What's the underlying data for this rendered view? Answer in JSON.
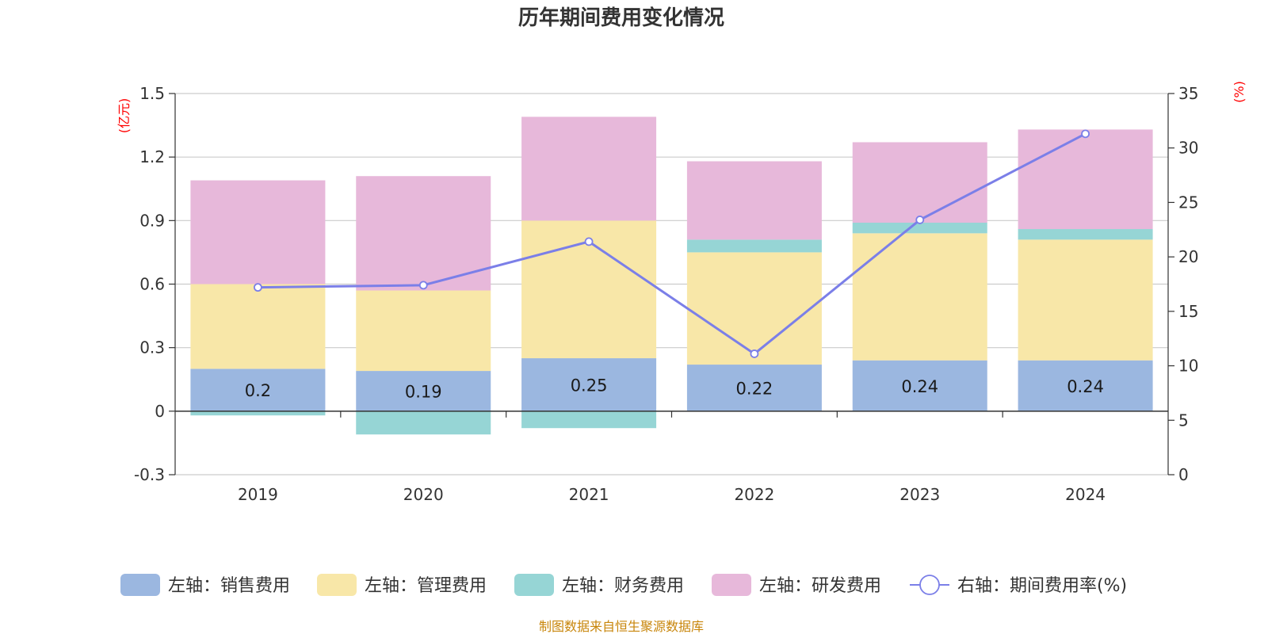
{
  "title": "历年期间费用变化情况",
  "source": "制图数据来自恒生聚源数据库",
  "left_axis_unit": "(亿元)",
  "right_axis_unit": "(%)",
  "chart_data": {
    "type": "bar",
    "stacked": true,
    "title": "历年期间费用变化情况",
    "categories": [
      "2019",
      "2020",
      "2021",
      "2022",
      "2023",
      "2024"
    ],
    "left_axis": {
      "unit": "(亿元)",
      "range": [
        -0.3,
        1.5
      ],
      "ticks": [
        -0.3,
        0,
        0.3,
        0.6,
        0.9,
        1.2,
        1.5
      ]
    },
    "right_axis": {
      "unit": "(%)",
      "range": [
        0,
        35
      ],
      "ticks": [
        0,
        5,
        10,
        15,
        20,
        25,
        30,
        35
      ]
    },
    "grid": true,
    "legend_position": "bottom",
    "series": [
      {
        "name": "左轴：销售费用",
        "axis": "left",
        "type": "bar",
        "color": "#9bb7e0",
        "values": [
          0.2,
          0.19,
          0.25,
          0.22,
          0.24,
          0.24
        ],
        "labels": [
          "0.2",
          "0.19",
          "0.25",
          "0.22",
          "0.24",
          "0.24"
        ]
      },
      {
        "name": "左轴：管理费用",
        "axis": "left",
        "type": "bar",
        "color": "#f8e7a8",
        "values": [
          0.4,
          0.38,
          0.65,
          0.53,
          0.6,
          0.57
        ]
      },
      {
        "name": "左轴：财务费用",
        "axis": "left",
        "type": "bar",
        "color": "#96d5d5",
        "values": [
          -0.02,
          -0.11,
          -0.08,
          0.06,
          0.05,
          0.05
        ]
      },
      {
        "name": "左轴：研发费用",
        "axis": "left",
        "type": "bar",
        "color": "#e7b8da",
        "values": [
          0.49,
          0.54,
          0.49,
          0.37,
          0.38,
          0.47
        ]
      },
      {
        "name": "右轴：期间费用率(%)",
        "axis": "right",
        "type": "line",
        "color": "#7b7fe8",
        "values": [
          17.2,
          17.4,
          21.4,
          11.1,
          23.4,
          31.3
        ]
      }
    ]
  }
}
